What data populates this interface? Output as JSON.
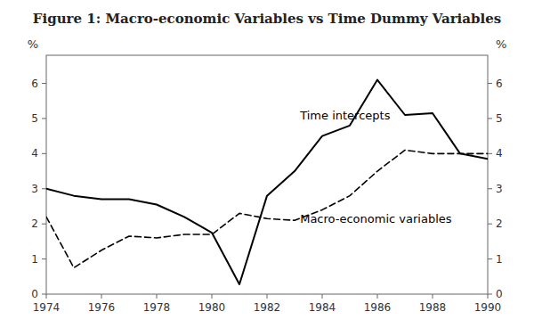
{
  "chart_data": {
    "type": "line",
    "title": "Figure 1: Macro-economic Variables vs Time Dummy Variables",
    "x": [
      1974,
      1975,
      1976,
      1977,
      1978,
      1979,
      1980,
      1981,
      1982,
      1983,
      1984,
      1985,
      1986,
      1987,
      1988,
      1989,
      1990
    ],
    "series": [
      {
        "color": "#000000",
        "line_style": "solid",
        "values": [
          3.0,
          2.8,
          2.7,
          2.7,
          2.55,
          2.2,
          1.75,
          0.28,
          2.8,
          3.5,
          4.5,
          4.8,
          6.1,
          5.1,
          5.15,
          4.0,
          3.85
        ]
      },
      {
        "color": "#000000",
        "line_style": "dashed",
        "values": [
          2.2,
          0.75,
          1.25,
          1.65,
          1.6,
          1.7,
          1.7,
          2.3,
          2.15,
          2.1,
          2.4,
          2.8,
          3.5,
          4.1,
          4.0,
          4.0,
          4.0
        ]
      }
    ],
    "xlim": [
      1974,
      1990
    ],
    "xticks": [
      1974,
      1976,
      1978,
      1980,
      1982,
      1984,
      1986,
      1988,
      1990
    ],
    "ylim": [
      0,
      6.8
    ],
    "yticks": [
      0,
      1,
      2,
      3,
      4,
      5,
      6
    ],
    "y2lim": [
      0,
      6.8
    ],
    "y2ticks": [
      0,
      1,
      2,
      3,
      4,
      5,
      6
    ],
    "ylabel": "%",
    "y2label": "%",
    "annotations": [
      {
        "text": "Time intercepts",
        "x": 1983.2,
        "y": 4.9
      },
      {
        "text": "Macro-economic variables",
        "x": 1983.2,
        "y": 2.35
      }
    ],
    "grid": false
  }
}
